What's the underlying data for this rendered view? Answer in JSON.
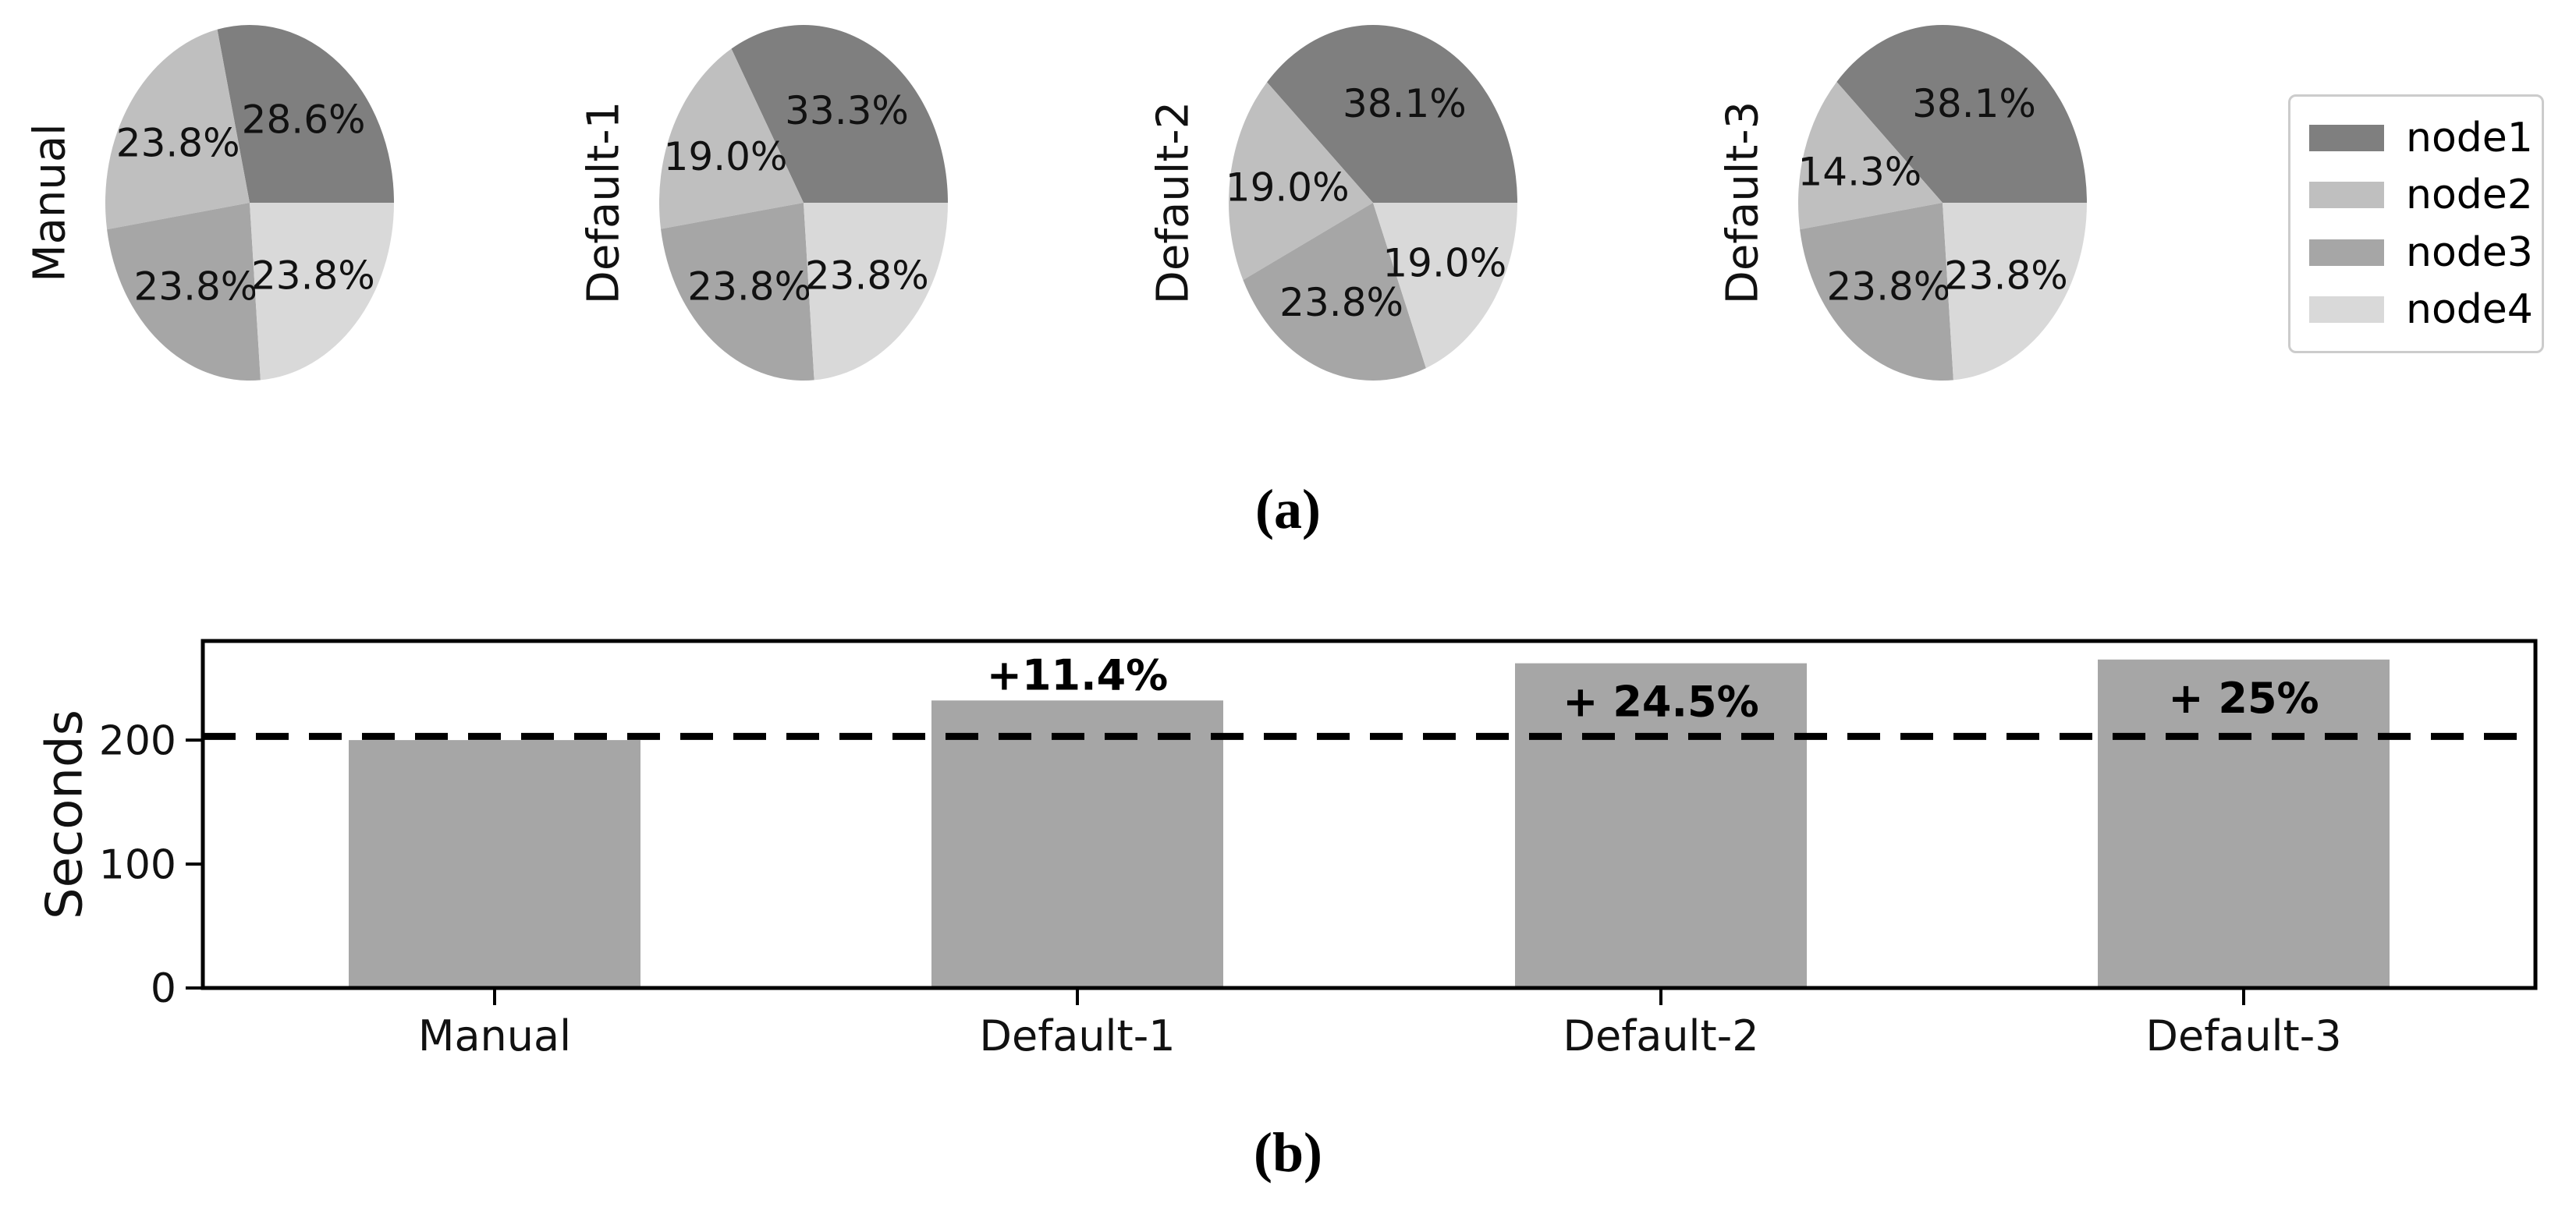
{
  "figure": {
    "background": "#ffffff",
    "caption_a": "(a)",
    "caption_b": "(b)"
  },
  "chart_data": [
    {
      "type": "pie",
      "caption": "(a)",
      "layout": "row of 4 pies, shared legend at upper right",
      "colors": [
        "#7f7f7f",
        "#bfbfbf",
        "#a6a6a6",
        "#d9d9d9"
      ],
      "legend": {
        "labels": [
          "node1",
          "node2",
          "node3",
          "node4"
        ],
        "position": "upper right",
        "border_color": "#cccccc"
      },
      "start_angle_deg": 0,
      "direction": "counterclockwise",
      "value_format": "percent_one_decimal",
      "pies": [
        {
          "title": "Manual",
          "labels": [
            "node1",
            "node2",
            "node3",
            "node4"
          ],
          "values_pct": [
            28.6,
            23.8,
            23.8,
            23.8
          ]
        },
        {
          "title": "Default-1",
          "labels": [
            "node1",
            "node2",
            "node3",
            "node4"
          ],
          "values_pct": [
            33.3,
            19.0,
            23.8,
            23.8
          ]
        },
        {
          "title": "Default-2",
          "labels": [
            "node1",
            "node2",
            "node3",
            "node4"
          ],
          "values_pct": [
            38.1,
            19.0,
            23.8,
            19.0
          ]
        },
        {
          "title": "Default-3",
          "labels": [
            "node1",
            "node2",
            "node3",
            "node4"
          ],
          "values_pct": [
            38.1,
            14.3,
            23.8,
            23.8
          ]
        }
      ]
    },
    {
      "type": "bar",
      "caption": "(b)",
      "categories": [
        "Manual",
        "Default-1",
        "Default-2",
        "Default-3"
      ],
      "values": [
        200,
        232,
        262,
        265
      ],
      "bar_annotations": [
        "",
        "+11.4%",
        "+ 24.5%",
        "+ 25%"
      ],
      "annotation_placement": [
        "none",
        "above",
        "inside",
        "inside"
      ],
      "ylabel": "Seconds",
      "yticks": [
        0,
        100,
        200
      ],
      "ylim": [
        0,
        280
      ],
      "reference_line": {
        "value": 203,
        "style": "dashed",
        "color": "#000000"
      },
      "bar_color": "#a6a6a6",
      "axes_color": "#000000",
      "grid": false,
      "legend_position": "none"
    }
  ]
}
